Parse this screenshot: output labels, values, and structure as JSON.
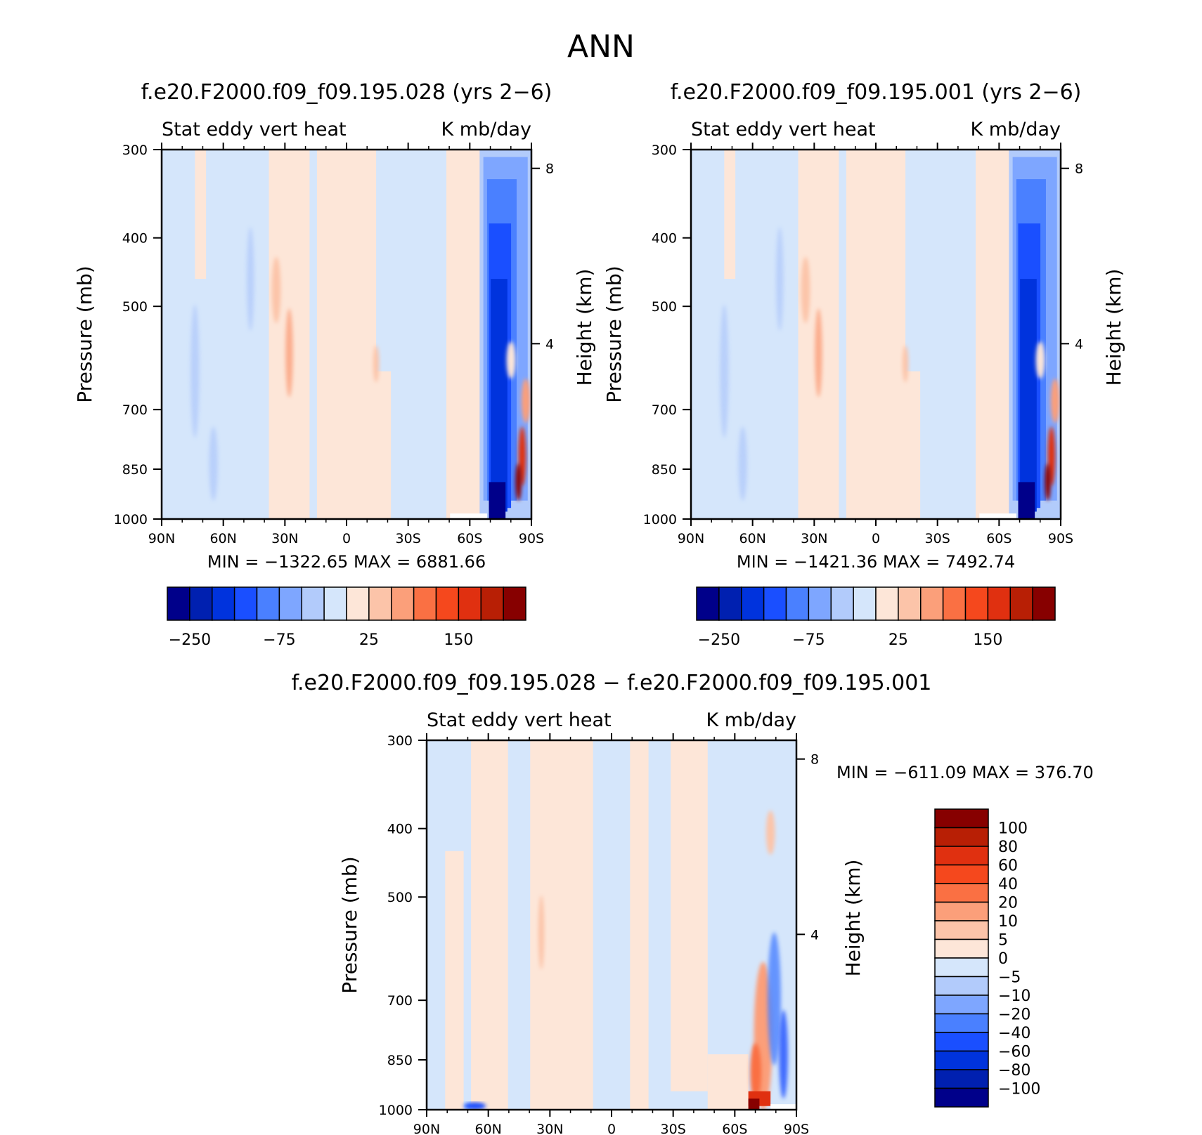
{
  "main_title": "ANN",
  "chart_data": [
    {
      "type": "heatmap",
      "title": "f.e20.F2000.f09_f09.195.028 (yrs 2−6)",
      "subtitle_left": "Stat eddy vert heat",
      "subtitle_right": "K mb/day",
      "xlabel": "",
      "ylabel": "Pressure (mb)",
      "y2label": "Height (km)",
      "x_ticks": [
        "90N",
        "60N",
        "30N",
        "0",
        "30S",
        "60S",
        "90S"
      ],
      "y_ticks": [
        "300",
        "400",
        "500",
        "700",
        "850",
        "1000"
      ],
      "y_tick_values": [
        300,
        400,
        500,
        700,
        850,
        1000
      ],
      "y2_ticks": [
        "8",
        "4"
      ],
      "y2_tick_values_km": [
        8,
        4
      ],
      "ylim": [
        1000,
        300
      ],
      "xlim": [
        -90,
        90
      ],
      "stats": {
        "min_label": "MIN",
        "min": "−1322.65",
        "max_label": "MAX",
        "max": "6881.66"
      },
      "colorbar": {
        "orientation": "horizontal",
        "labels": [
          "−250",
          "−75",
          "25",
          "150"
        ],
        "colors": [
          "#00008a",
          "#0020b0",
          "#0033dd",
          "#1a4fff",
          "#4a80ff",
          "#7ea6ff",
          "#b2cbfb",
          "#d5e6fb",
          "#fde6d8",
          "#fcc4a9",
          "#fb9f7a",
          "#fa7043",
          "#f5481d",
          "#e03010",
          "#b81f05",
          "#870000"
        ]
      }
    },
    {
      "type": "heatmap",
      "title": "f.e20.F2000.f09_f09.195.001 (yrs 2−6)",
      "subtitle_left": "Stat eddy vert heat",
      "subtitle_right": "K mb/day",
      "xlabel": "",
      "ylabel": "Pressure (mb)",
      "y2label": "Height (km)",
      "x_ticks": [
        "90N",
        "60N",
        "30N",
        "0",
        "30S",
        "60S",
        "90S"
      ],
      "y_ticks": [
        "300",
        "400",
        "500",
        "700",
        "850",
        "1000"
      ],
      "y_tick_values": [
        300,
        400,
        500,
        700,
        850,
        1000
      ],
      "y2_ticks": [
        "8",
        "4"
      ],
      "y2_tick_values_km": [
        8,
        4
      ],
      "ylim": [
        1000,
        300
      ],
      "xlim": [
        -90,
        90
      ],
      "stats": {
        "min_label": "MIN",
        "min": "−1421.36",
        "max_label": "MAX",
        "max": "7492.74"
      },
      "colorbar": {
        "orientation": "horizontal",
        "labels": [
          "−250",
          "−75",
          "25",
          "150"
        ],
        "colors": [
          "#00008a",
          "#0020b0",
          "#0033dd",
          "#1a4fff",
          "#4a80ff",
          "#7ea6ff",
          "#b2cbfb",
          "#d5e6fb",
          "#fde6d8",
          "#fcc4a9",
          "#fb9f7a",
          "#fa7043",
          "#f5481d",
          "#e03010",
          "#b81f05",
          "#870000"
        ]
      }
    },
    {
      "type": "heatmap",
      "title": "f.e20.F2000.f09_f09.195.028 − f.e20.F2000.f09_f09.195.001",
      "subtitle_left": "Stat eddy vert heat",
      "subtitle_right": "K mb/day",
      "xlabel": "",
      "ylabel": "Pressure (mb)",
      "y2label": "Height (km)",
      "x_ticks": [
        "90N",
        "60N",
        "30N",
        "0",
        "30S",
        "60S",
        "90S"
      ],
      "y_ticks": [
        "300",
        "400",
        "500",
        "700",
        "850",
        "1000"
      ],
      "y_tick_values": [
        300,
        400,
        500,
        700,
        850,
        1000
      ],
      "y2_ticks": [
        "8",
        "4"
      ],
      "y2_tick_values_km": [
        8,
        4
      ],
      "ylim": [
        1000,
        300
      ],
      "xlim": [
        -90,
        90
      ],
      "stats": {
        "min_label": "MIN",
        "min": "−611.09",
        "max_label": "MAX",
        "max": "376.70"
      },
      "colorbar": {
        "orientation": "vertical",
        "labels": [
          "100",
          "80",
          "60",
          "40",
          "20",
          "10",
          "5",
          "0",
          "−5",
          "−10",
          "−20",
          "−40",
          "−60",
          "−80",
          "−100"
        ],
        "colors": [
          "#870000",
          "#b81f05",
          "#e03010",
          "#f5481d",
          "#fa7043",
          "#fb9f7a",
          "#fcc4a9",
          "#fde6d8",
          "#d5e6fb",
          "#b2cbfb",
          "#7ea6ff",
          "#4a80ff",
          "#1a4fff",
          "#0033dd",
          "#0020b0",
          "#00008a"
        ]
      }
    }
  ]
}
